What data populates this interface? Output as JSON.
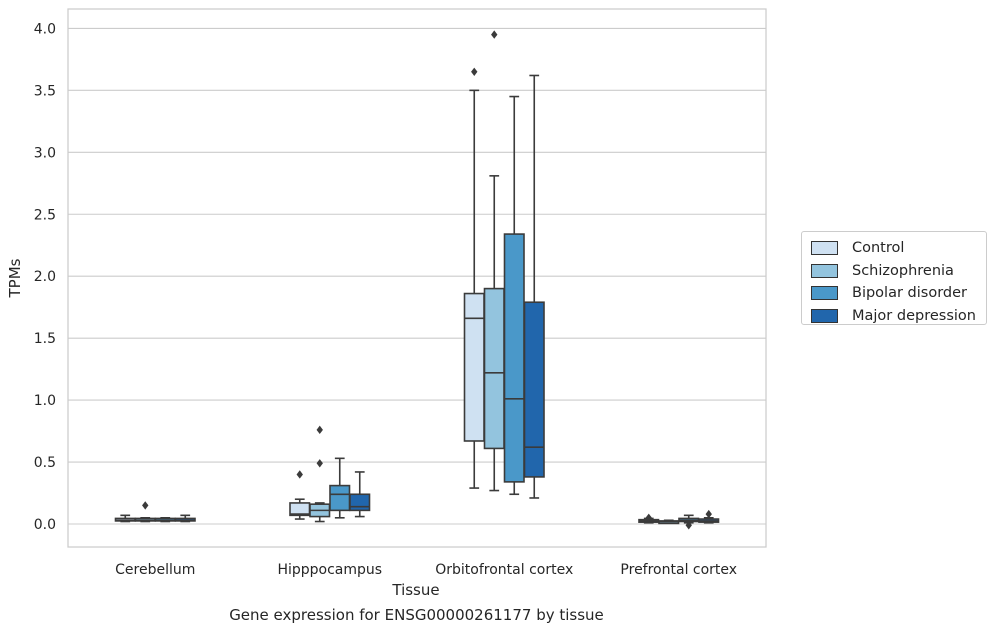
{
  "caption": "Gene expression for ENSG00000261177 by tissue",
  "chart_data": {
    "type": "box",
    "xlabel": "Tissue",
    "ylabel": "TPMs",
    "ylim": [
      -0.19,
      4.15
    ],
    "yticks": [
      0.0,
      0.5,
      1.0,
      1.5,
      2.0,
      2.5,
      3.0,
      3.5,
      4.0
    ],
    "ytick_labels": [
      "0.0",
      "0.5",
      "1.0",
      "1.5",
      "2.0",
      "2.5",
      "3.0",
      "3.5",
      "4.0"
    ],
    "categories": [
      "Cerebellum",
      "Hipppocampus",
      "Orbitofrontal cortex",
      "Prefrontal cortex"
    ],
    "grid": "horizontal",
    "legend_position": "right",
    "series": [
      {
        "name": "Control",
        "color": "#cfe1f2",
        "boxes": [
          {
            "whislo": 0.02,
            "q1": 0.025,
            "med": 0.03,
            "q3": 0.045,
            "whishi": 0.07,
            "fliers": []
          },
          {
            "whislo": 0.04,
            "q1": 0.07,
            "med": 0.08,
            "q3": 0.17,
            "whishi": 0.2,
            "fliers": [
              0.4
            ]
          },
          {
            "whislo": 0.29,
            "q1": 0.67,
            "med": 1.66,
            "q3": 1.86,
            "whishi": 3.5,
            "fliers": [
              3.65
            ]
          },
          {
            "whislo": 0.01,
            "q1": 0.02,
            "med": 0.025,
            "q3": 0.035,
            "whishi": 0.045,
            "fliers": [
              0.05
            ]
          }
        ]
      },
      {
        "name": "Schizophrenia",
        "color": "#93c4de",
        "boxes": [
          {
            "whislo": 0.02,
            "q1": 0.025,
            "med": 0.03,
            "q3": 0.045,
            "whishi": 0.05,
            "fliers": [
              0.15
            ]
          },
          {
            "whislo": 0.02,
            "q1": 0.06,
            "med": 0.11,
            "q3": 0.16,
            "whishi": 0.17,
            "fliers": [
              0.49,
              0.76
            ]
          },
          {
            "whislo": 0.27,
            "q1": 0.61,
            "med": 1.22,
            "q3": 1.9,
            "whishi": 2.81,
            "fliers": [
              3.95
            ]
          },
          {
            "whislo": 0.01,
            "q1": 0.015,
            "med": 0.02,
            "q3": 0.025,
            "whishi": 0.03,
            "fliers": []
          }
        ]
      },
      {
        "name": "Bipolar disorder",
        "color": "#4a98c9",
        "boxes": [
          {
            "whislo": 0.02,
            "q1": 0.025,
            "med": 0.03,
            "q3": 0.045,
            "whishi": 0.05,
            "fliers": []
          },
          {
            "whislo": 0.05,
            "q1": 0.11,
            "med": 0.24,
            "q3": 0.31,
            "whishi": 0.53,
            "fliers": []
          },
          {
            "whislo": 0.24,
            "q1": 0.34,
            "med": 1.01,
            "q3": 2.34,
            "whishi": 3.45,
            "fliers": []
          },
          {
            "whislo": 0.01,
            "q1": 0.02,
            "med": 0.03,
            "q3": 0.045,
            "whishi": 0.07,
            "fliers": [
              -0.01
            ]
          }
        ]
      },
      {
        "name": "Major depression",
        "color": "#2166ac",
        "boxes": [
          {
            "whislo": 0.02,
            "q1": 0.025,
            "med": 0.03,
            "q3": 0.045,
            "whishi": 0.07,
            "fliers": []
          },
          {
            "whislo": 0.06,
            "q1": 0.11,
            "med": 0.14,
            "q3": 0.24,
            "whishi": 0.42,
            "fliers": []
          },
          {
            "whislo": 0.21,
            "q1": 0.38,
            "med": 0.62,
            "q3": 1.79,
            "whishi": 3.62,
            "fliers": []
          },
          {
            "whislo": 0.01,
            "q1": 0.015,
            "med": 0.025,
            "q3": 0.04,
            "whishi": 0.05,
            "fliers": [
              0.08
            ]
          }
        ]
      }
    ]
  }
}
